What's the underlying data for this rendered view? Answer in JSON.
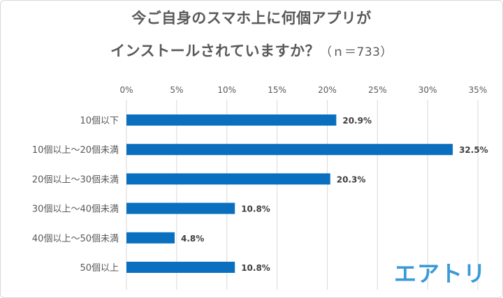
{
  "title_line1": "今ご自身のスマホ上に何個アプリが",
  "title_line2": "インストールされていますか？",
  "title_sample": "（ｎ＝733）",
  "logo_text": "エアトリ",
  "colors": {
    "bar": "#0b6fbf",
    "grid": "#d9d9d9",
    "text": "#595959",
    "logo": "#3a9ad9"
  },
  "chart_data": {
    "type": "bar",
    "orientation": "horizontal",
    "categories": [
      "10個以下",
      "10個以上～20個未満",
      "20個以上～30個未満",
      "30個以上～40個未満",
      "40個以上～50個未満",
      "50個以上"
    ],
    "values": [
      20.9,
      32.5,
      20.3,
      10.8,
      4.8,
      10.8
    ],
    "value_labels": [
      "20.9%",
      "32.5%",
      "20.3%",
      "10.8%",
      "4.8%",
      "10.8%"
    ],
    "xticks": [
      0,
      5,
      10,
      15,
      20,
      25,
      30,
      35
    ],
    "xtick_labels": [
      "0%",
      "5%",
      "10%",
      "15%",
      "20%",
      "25%",
      "30%",
      "35%"
    ],
    "xlim": [
      0,
      35
    ],
    "axis_position": "top",
    "grid": true,
    "legend": "none"
  }
}
